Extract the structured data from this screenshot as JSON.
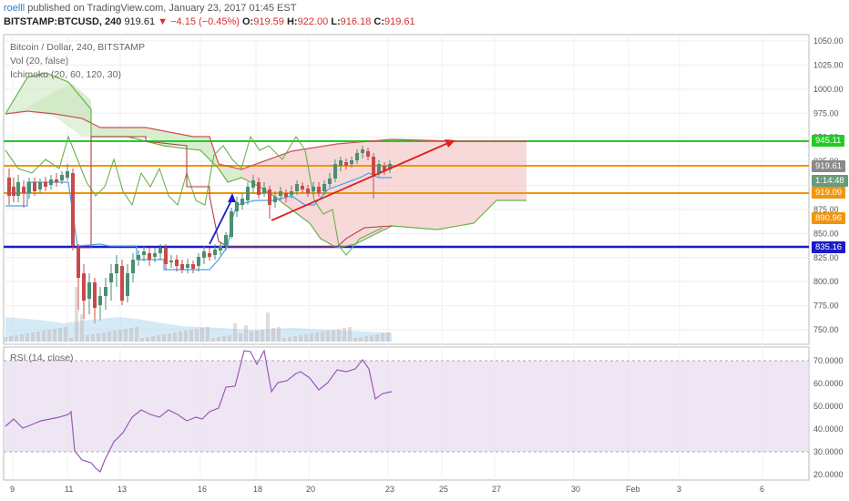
{
  "header": {
    "user": "roelll",
    "published": "published on TradingView.com, January 23, 2017 01:45 EST",
    "symbol": "BITSTAMP:BTCUSD, 240",
    "last": "919.61",
    "change": "▼ −4.15 (−0.45%)",
    "o_label": "O:",
    "o_val": "919.59",
    "h_label": "H:",
    "h_val": "922.00",
    "l_label": "L:",
    "l_val": "916.18",
    "c_label": "C:",
    "c_val": "919.61"
  },
  "legend": {
    "title": "Bitcoin / Dollar, 240, BITSTAMP",
    "vol": "Vol (20, false)",
    "ichimoku": "Ichimoku (20, 60, 120, 30)",
    "rsi": "RSI (14, close)"
  },
  "price_axis": [
    "1050.00",
    "1025.00",
    "1000.00",
    "975.00",
    "950.00",
    "925.00",
    "900.00",
    "875.00",
    "850.00",
    "825.00",
    "800.00",
    "775.00",
    "750.00"
  ],
  "rsi_axis": [
    "70.0000",
    "60.0000",
    "50.0000",
    "40.0000",
    "30.0000",
    "20.0000"
  ],
  "time_axis": [
    "9",
    "11",
    "13",
    "16",
    "18",
    "20",
    "23",
    "25",
    "27",
    "30",
    "Feb",
    "3",
    "6"
  ],
  "price_tags": {
    "green_line": "945.11",
    "last_price": "919.61",
    "countdown": "1:14:48",
    "orange_line": "919.09",
    "upper_orange": "890.96",
    "blue_line": "835.16"
  },
  "colors": {
    "green_line": "#22cc22",
    "orange_line": "#f0950c",
    "blue_line": "#1a1acc",
    "up_candle": "#4a8f72",
    "down_candle": "#c94a4a",
    "rsi_line": "#9b59b6",
    "rsi_band": "#e8dcf0"
  }
}
